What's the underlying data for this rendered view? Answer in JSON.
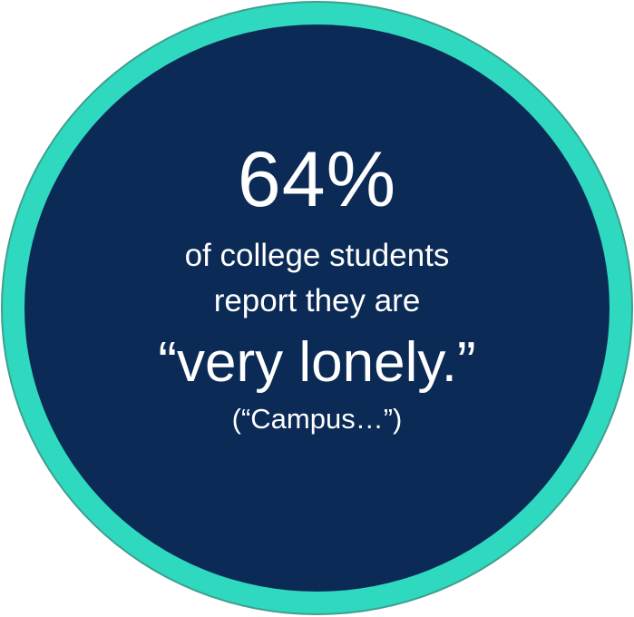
{
  "badge": {
    "stat": "64%",
    "line1": "of college students",
    "line2": "report they are",
    "quote": "“very lonely.”",
    "source": "(“Campus…”)",
    "ring_color": "#2fd9bf",
    "fill_color": "#0b2a55",
    "text_color": "#ffffff"
  }
}
